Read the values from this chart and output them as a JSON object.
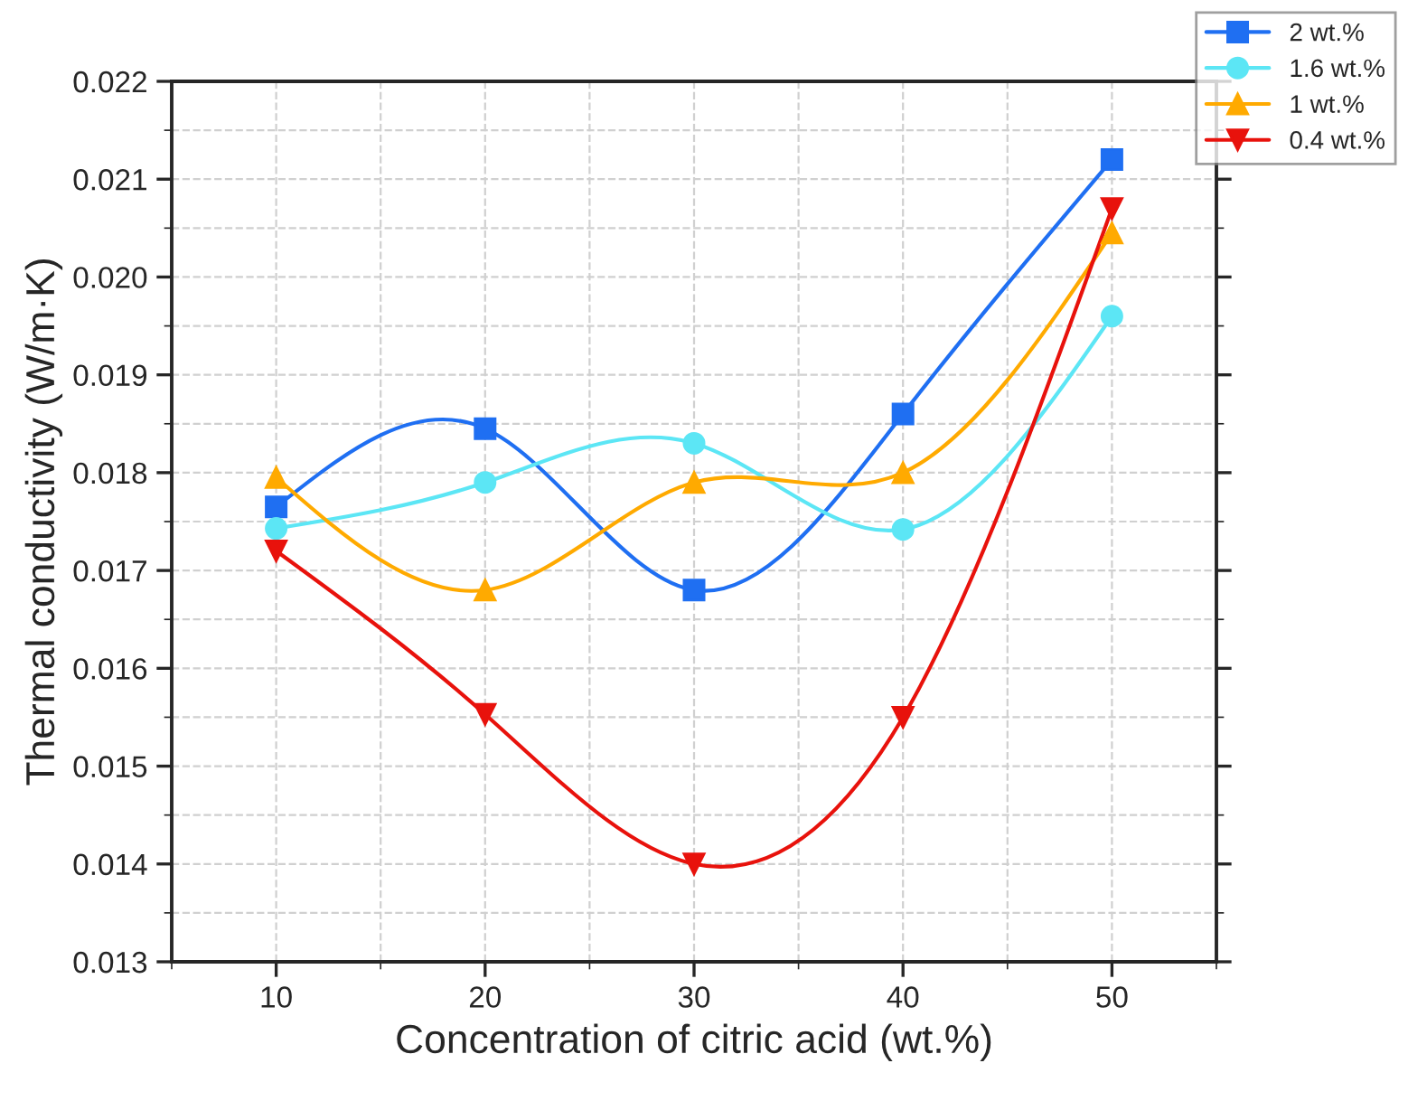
{
  "chart_data": {
    "type": "line",
    "xlabel": "Concentration of citric acid (wt.%)",
    "ylabel": "Thermal conductivity (W/m·K)",
    "x": [
      10,
      20,
      30,
      40,
      50
    ],
    "series": [
      {
        "name": "2 wt.%",
        "color": "#1f6ff2",
        "marker": "square",
        "values": [
          0.01765,
          0.01845,
          0.0168,
          0.0186,
          0.0212
        ]
      },
      {
        "name": "1.6 wt.%",
        "color": "#5ce6f5",
        "marker": "circle",
        "values": [
          0.01743,
          0.0179,
          0.0183,
          0.01742,
          0.0196
        ]
      },
      {
        "name": "1 wt.%",
        "color": "#ffaa00",
        "marker": "triangle",
        "values": [
          0.01795,
          0.0168,
          0.0179,
          0.018,
          0.02045
        ]
      },
      {
        "name": "0.4 wt.%",
        "color": "#e8120c",
        "marker": "triangle_down",
        "values": [
          0.0172,
          0.01553,
          0.014,
          0.0155,
          0.0207
        ]
      }
    ],
    "xlim": [
      5,
      55
    ],
    "xticks": [
      10,
      20,
      30,
      40,
      50
    ],
    "ylim": [
      0.013,
      0.022
    ],
    "yticks": [
      {
        "value": 0.013,
        "label": "0.013"
      },
      {
        "value": 0.014,
        "label": "0.014"
      },
      {
        "value": 0.015,
        "label": "0.015"
      },
      {
        "value": 0.016,
        "label": "0.016"
      },
      {
        "value": 0.017,
        "label": "0.017"
      },
      {
        "value": 0.018,
        "label": "0.018"
      },
      {
        "value": 0.019,
        "label": "0.019"
      },
      {
        "value": 0.02,
        "label": "0.020"
      },
      {
        "value": 0.021,
        "label": "0.021"
      },
      {
        "value": 0.022,
        "label": "0.022"
      }
    ],
    "grid": true,
    "legend": "top right",
    "line_style": "solid"
  }
}
